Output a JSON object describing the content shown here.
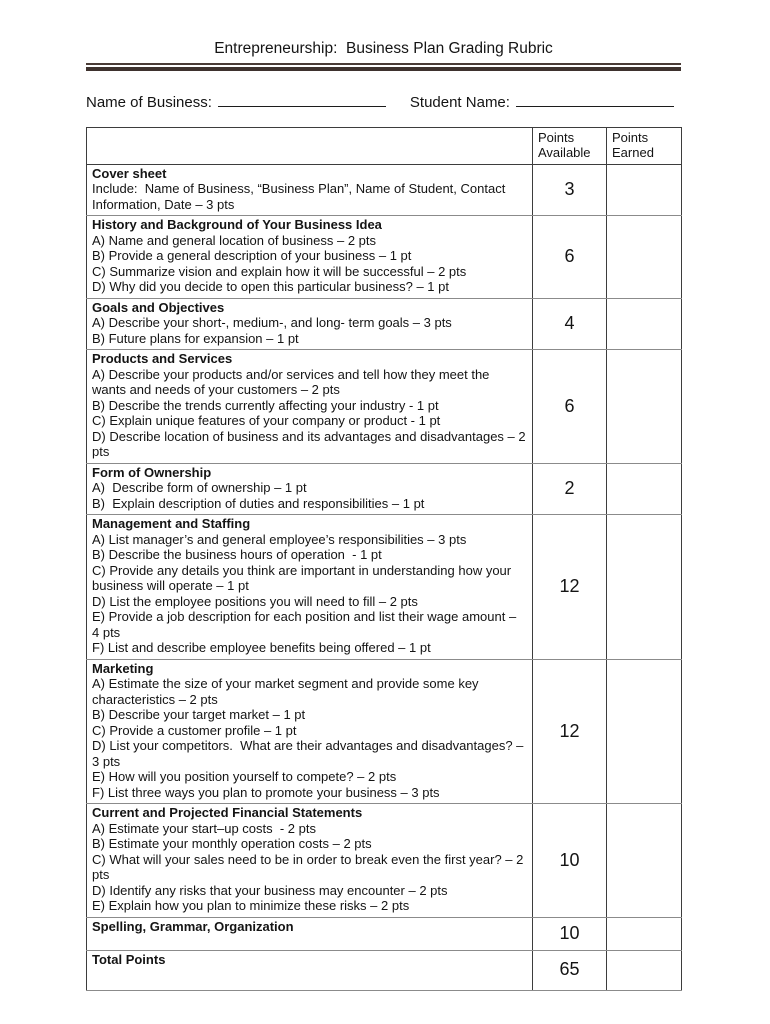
{
  "page": {
    "title": "Entrepreneurship:  Business Plan Grading Rubric"
  },
  "fields": {
    "business_label": "Name of Business:",
    "student_label": "Student Name:"
  },
  "table": {
    "header": {
      "points_available": "Points Available",
      "points_earned": "Points Earned"
    },
    "rows": [
      {
        "title": "Cover sheet",
        "items": [
          "Include:  Name of Business, “Business Plan”, Name of Student, Contact Information, Date – 3 pts"
        ],
        "points_available": "3",
        "points_earned": ""
      },
      {
        "title": "History and Background of Your Business Idea",
        "items": [
          "A) Name and general location of business – 2 pts",
          "B) Provide a general description of your business – 1 pt",
          "C) Summarize vision and explain how it will be successful – 2 pts",
          "D) Why did you decide to open this particular business? – 1 pt"
        ],
        "points_available": "6",
        "points_earned": ""
      },
      {
        "title": "Goals and Objectives",
        "items": [
          "A) Describe your short-, medium-, and long- term goals – 3 pts",
          "B) Future plans for expansion – 1 pt"
        ],
        "points_available": "4",
        "points_earned": ""
      },
      {
        "title": "Products and Services",
        "items": [
          "A) Describe your products and/or services and tell how they meet the wants and needs of your customers – 2 pts",
          "B) Describe the trends currently affecting your industry - 1 pt",
          "C) Explain unique features of your company or product - 1 pt",
          "D) Describe location of business and its advantages and disadvantages – 2 pts"
        ],
        "points_available": "6",
        "points_earned": ""
      },
      {
        "title": "Form of Ownership",
        "items": [
          "A)  Describe form of ownership – 1 pt",
          "B)  Explain description of duties and responsibilities – 1 pt"
        ],
        "points_available": "2",
        "points_earned": ""
      },
      {
        "title": "Management and Staffing",
        "items": [
          "A) List manager’s and general employee’s responsibilities – 3 pts",
          "B) Describe the business hours of operation  - 1 pt",
          "C) Provide any details you think are important in understanding how your business will operate – 1 pt",
          "D) List the employee positions you will need to fill – 2 pts",
          "E) Provide a job description for each position and list their wage amount – 4 pts",
          "F) List and describe employee benefits being offered – 1 pt"
        ],
        "points_available": "12",
        "points_earned": ""
      },
      {
        "title": "Marketing",
        "items": [
          "A) Estimate the size of your market segment and provide some key characteristics – 2 pts",
          "B) Describe your target market – 1 pt",
          "C) Provide a customer profile – 1 pt",
          "D) List your competitors.  What are their advantages and disadvantages? – 3 pts",
          "E) How will you position yourself to compete? – 2 pts",
          "F) List three ways you plan to promote your business – 3 pts"
        ],
        "points_available": "12",
        "points_earned": ""
      },
      {
        "title": "Current and Projected Financial Statements",
        "items": [
          "A) Estimate your start–up costs  - 2 pts",
          "B) Estimate your monthly operation costs – 2 pts",
          "C) What will your sales need to be in order to break even the first year? – 2 pts",
          "D) Identify any risks that your business may encounter – 2 pts",
          "E) Explain how you plan to minimize these risks – 2 pts"
        ],
        "points_available": "10",
        "points_earned": ""
      },
      {
        "title": "Spelling, Grammar, Organization",
        "items": [],
        "points_available": "10",
        "points_earned": ""
      },
      {
        "title": "Total Points",
        "items": [],
        "points_available": "65",
        "points_earned": ""
      }
    ]
  },
  "colors": {
    "title_rule_thick": "#3e322e",
    "title_rule_thin": "#4a3c36",
    "table_border_dark": "#3d3d3d",
    "table_border_light": "#8b8b8b",
    "text": "#141414"
  }
}
